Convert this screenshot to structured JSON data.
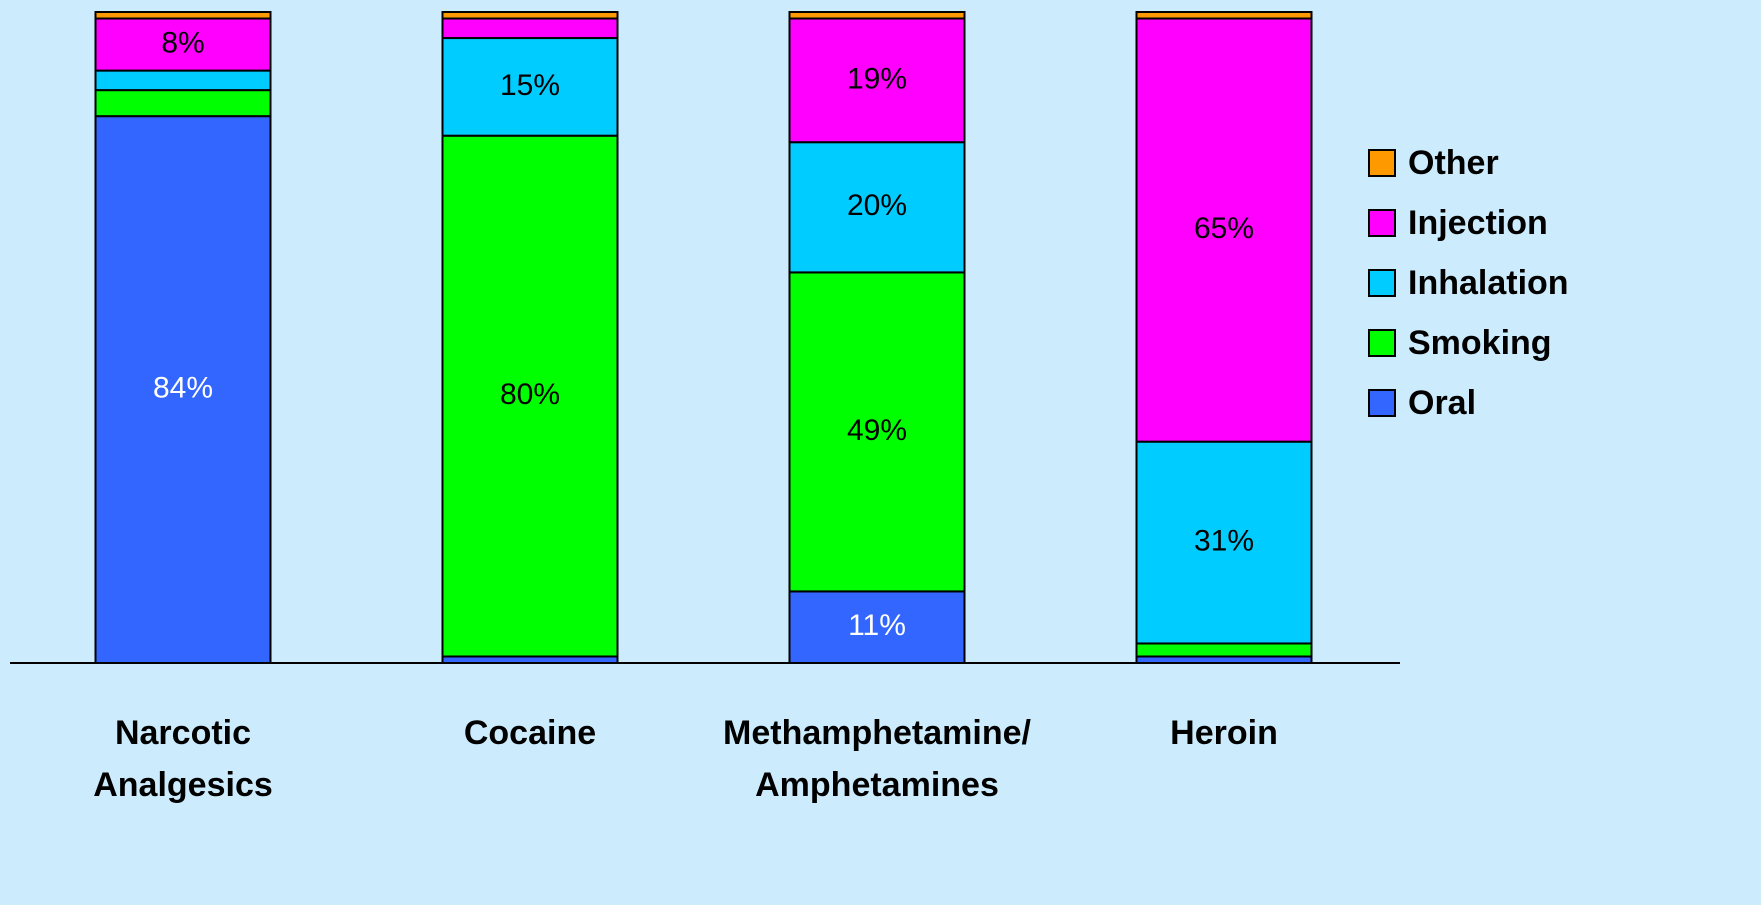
{
  "chart_data": {
    "type": "stacked_bar",
    "categories": [
      "Narcotic\nAnalgesics",
      "Cocaine",
      "Methamphetamine/\nAmphetamines",
      "Heroin"
    ],
    "ylim": [
      0,
      100
    ],
    "series": [
      {
        "name": "Oral",
        "color": "#3366ff",
        "label_color": "#ffffff",
        "values": [
          84,
          1,
          11,
          1
        ],
        "value_labels": [
          "84%",
          null,
          "11%",
          null
        ]
      },
      {
        "name": "Smoking",
        "color": "#00ff00",
        "label_color": "#000000",
        "values": [
          4,
          80,
          49,
          2
        ],
        "value_labels": [
          null,
          "80%",
          "49%",
          null
        ]
      },
      {
        "name": "Inhalation",
        "color": "#00ccff",
        "label_color": "#000000",
        "values": [
          3,
          15,
          20,
          31
        ],
        "value_labels": [
          null,
          "15%",
          "20%",
          "31%"
        ]
      },
      {
        "name": "Injection",
        "color": "#ff00ff",
        "label_color": "#000000",
        "values": [
          8,
          3,
          19,
          65
        ],
        "value_labels": [
          "8%",
          null,
          "19%",
          "65%"
        ]
      },
      {
        "name": "Other",
        "color": "#ff9900",
        "label_color": "#000000",
        "values": [
          1,
          1,
          1,
          1
        ],
        "value_labels": [
          null,
          null,
          null,
          null
        ]
      }
    ]
  }
}
